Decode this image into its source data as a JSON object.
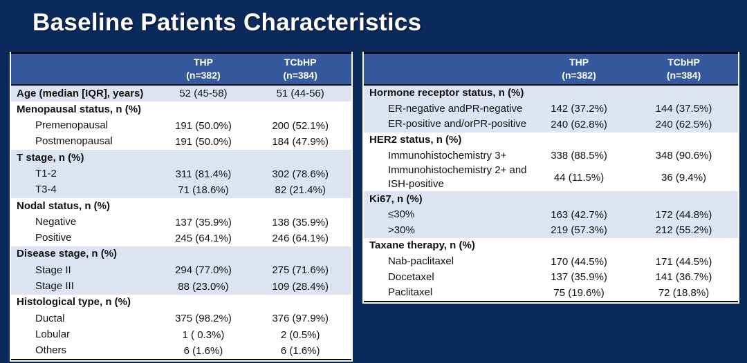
{
  "slide": {
    "title": "Baseline Patients Characteristics"
  },
  "colors": {
    "background": "#0d2a5c",
    "header_bg": "#35599c",
    "header_text": "#ffffff",
    "row_alt_bg": "#dde4f1",
    "row_bg": "#ffffff",
    "text": "#111111",
    "rule": "#0a0a14"
  },
  "tables": [
    {
      "name": "baseline-characteristics-left",
      "col_headers": [
        {
          "title": "THP",
          "n": "(n=382)"
        },
        {
          "title": "TCbHP",
          "n": "(n=384)"
        }
      ],
      "groups": [
        {
          "shade": "alt",
          "rows": [
            {
              "label": "Age (median [IQR], years)",
              "bold": true,
              "indent": false,
              "thp": "52 (45-58)",
              "tcbhp": "51 (44-56)"
            }
          ]
        },
        {
          "shade": "plain",
          "rows": [
            {
              "label": "Menopausal status, n (%)",
              "bold": true,
              "indent": false,
              "thp": "",
              "tcbhp": ""
            },
            {
              "label": "Premenopausal",
              "bold": false,
              "indent": true,
              "thp": "191 (50.0%)",
              "tcbhp": "200 (52.1%)"
            },
            {
              "label": "Postmenopausal",
              "bold": false,
              "indent": true,
              "thp": "191 (50.0%)",
              "tcbhp": "184 (47.9%)"
            }
          ]
        },
        {
          "shade": "alt",
          "rows": [
            {
              "label": "T stage, n (%)",
              "bold": true,
              "indent": false,
              "thp": "",
              "tcbhp": ""
            },
            {
              "label": "T1-2",
              "bold": false,
              "indent": true,
              "thp": "311 (81.4%)",
              "tcbhp": "302 (78.6%)"
            },
            {
              "label": "T3-4",
              "bold": false,
              "indent": true,
              "thp": "71 (18.6%)",
              "tcbhp": "82 (21.4%)"
            }
          ]
        },
        {
          "shade": "plain",
          "rows": [
            {
              "label": "Nodal status, n (%)",
              "bold": true,
              "indent": false,
              "thp": "",
              "tcbhp": ""
            },
            {
              "label": "Negative",
              "bold": false,
              "indent": true,
              "thp": "137 (35.9%)",
              "tcbhp": "138 (35.9%)"
            },
            {
              "label": "Positive",
              "bold": false,
              "indent": true,
              "thp": "245 (64.1%)",
              "tcbhp": "246 (64.1%)"
            }
          ]
        },
        {
          "shade": "alt",
          "rows": [
            {
              "label": "Disease stage, n (%)",
              "bold": true,
              "indent": false,
              "thp": "",
              "tcbhp": ""
            },
            {
              "label": "Stage II",
              "bold": false,
              "indent": true,
              "thp": "294 (77.0%)",
              "tcbhp": "275 (71.6%)"
            },
            {
              "label": "Stage III",
              "bold": false,
              "indent": true,
              "thp": "88 (23.0%)",
              "tcbhp": "109 (28.4%)"
            }
          ]
        },
        {
          "shade": "plain",
          "rows": [
            {
              "label": "Histological type, n (%)",
              "bold": true,
              "indent": false,
              "thp": "",
              "tcbhp": ""
            },
            {
              "label": "Ductal",
              "bold": false,
              "indent": true,
              "thp": "375 (98.2%)",
              "tcbhp": "376 (97.9%)"
            },
            {
              "label": "Lobular",
              "bold": false,
              "indent": true,
              "thp": "1 ( 0.3%)",
              "tcbhp": "2 (0.5%)"
            },
            {
              "label": "Others",
              "bold": false,
              "indent": true,
              "thp": "6 (1.6%)",
              "tcbhp": "6 (1.6%)"
            }
          ]
        }
      ]
    },
    {
      "name": "baseline-characteristics-right",
      "col_headers": [
        {
          "title": "THP",
          "n": "(n=382)"
        },
        {
          "title": "TCbHP",
          "n": "(n=384)"
        }
      ],
      "groups": [
        {
          "shade": "alt",
          "rows": [
            {
              "label": "Hormone receptor status, n (%)",
              "bold": true,
              "indent": false,
              "thp": "",
              "tcbhp": ""
            },
            {
              "label": "ER-negative andPR-negative",
              "bold": false,
              "indent": true,
              "thp": "142 (37.2%)",
              "tcbhp": "144 (37.5%)"
            },
            {
              "label": "ER-positive and/orPR-positive",
              "bold": false,
              "indent": true,
              "thp": "240 (62.8%)",
              "tcbhp": "240 (62.5%)"
            }
          ]
        },
        {
          "shade": "plain",
          "rows": [
            {
              "label": "HER2 status, n (%)",
              "bold": true,
              "indent": false,
              "thp": "",
              "tcbhp": ""
            },
            {
              "label": "Immunohistochemistry 3+",
              "bold": false,
              "indent": true,
              "thp": "338 (88.5%)",
              "tcbhp": "348 (90.6%)"
            },
            {
              "label": "Immunohistochemistry 2+ and ISH-positive",
              "bold": false,
              "indent": true,
              "thp": "44 (11.5%)",
              "tcbhp": "36 (9.4%)"
            }
          ]
        },
        {
          "shade": "alt",
          "rows": [
            {
              "label": "Ki67, n (%)",
              "bold": true,
              "indent": false,
              "thp": "",
              "tcbhp": ""
            },
            {
              "label": "≤30%",
              "bold": false,
              "indent": true,
              "thp": "163 (42.7%)",
              "tcbhp": "172 (44.8%)"
            },
            {
              "label": ">30%",
              "bold": false,
              "indent": true,
              "thp": "219 (57.3%)",
              "tcbhp": "212 (55.2%)"
            }
          ]
        },
        {
          "shade": "plain",
          "rows": [
            {
              "label": "Taxane therapy, n (%)",
              "bold": true,
              "indent": false,
              "thp": "",
              "tcbhp": ""
            },
            {
              "label": "Nab-paclitaxel",
              "bold": false,
              "indent": true,
              "thp": "170 (44.5%)",
              "tcbhp": "171 (44.5%)"
            },
            {
              "label": "Docetaxel",
              "bold": false,
              "indent": true,
              "thp": "137 (35.9%)",
              "tcbhp": "141 (36.7%)"
            },
            {
              "label": "Paclitaxel",
              "bold": false,
              "indent": true,
              "thp": "75 (19.6%)",
              "tcbhp": "72 (18.8%)"
            }
          ]
        }
      ]
    }
  ]
}
